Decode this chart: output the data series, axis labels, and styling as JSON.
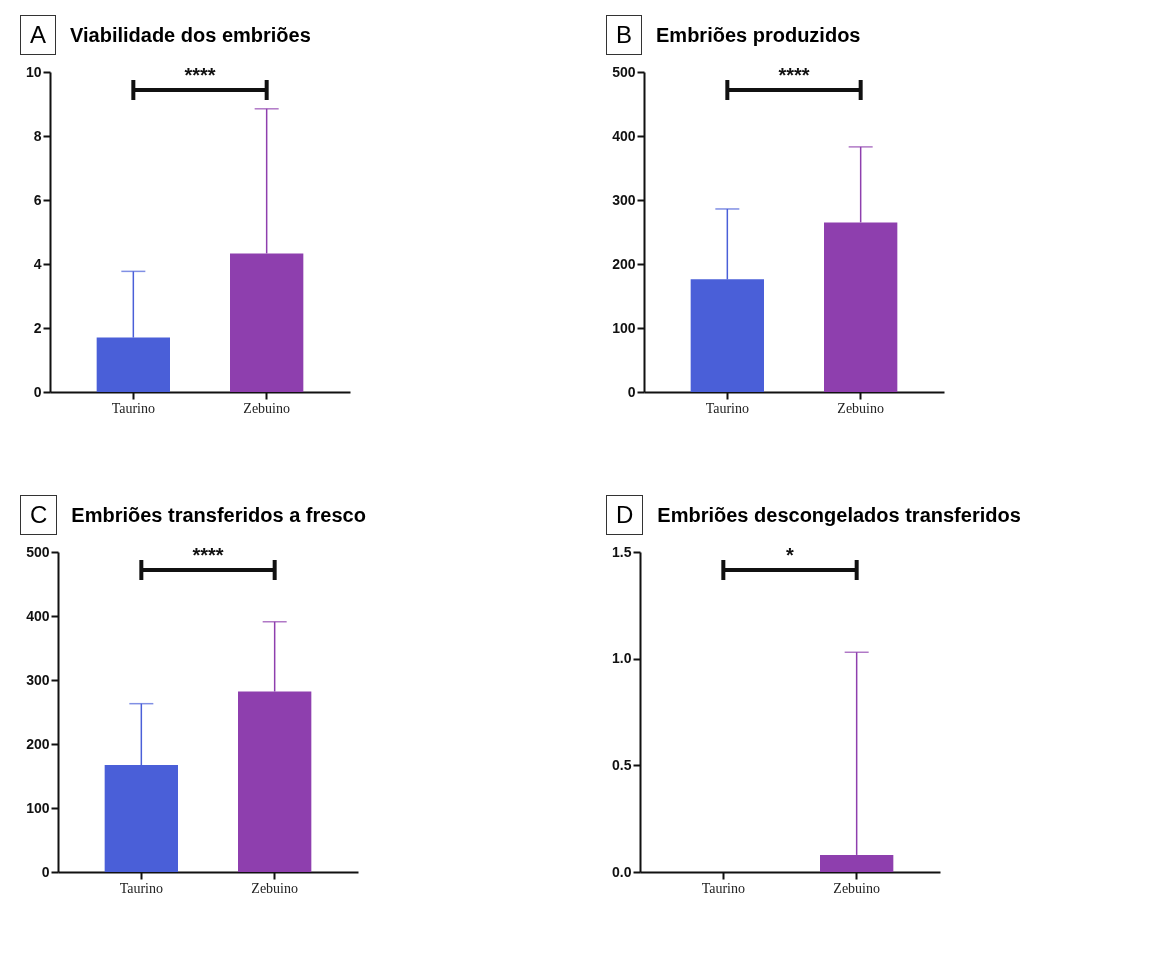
{
  "chart_data": [
    {
      "type": "bar",
      "title": "Viabilidade dos embriões",
      "categories": [
        "Taurino",
        "Zebuino"
      ],
      "values": [
        1.7,
        4.33
      ],
      "colors": [
        "#4a5fd8",
        "#8e3fae"
      ],
      "errors": [
        [
          1.7,
          3.77
        ],
        [
          4.33,
          8.85
        ]
      ],
      "ylim": [
        0,
        10
      ],
      "yticks": [
        0,
        2,
        4,
        6,
        8,
        10
      ],
      "annotations": [
        "A",
        "****"
      ]
    },
    {
      "type": "bar",
      "title": "Embriões produzidos",
      "categories": [
        "Taurino",
        "Zebuino"
      ],
      "values": [
        176,
        265
      ],
      "colors": [
        "#4a5fd8",
        "#8e3fae"
      ],
      "errors": [
        [
          176,
          286
        ],
        [
          265,
          383
        ]
      ],
      "ylim": [
        0,
        500
      ],
      "yticks": [
        0,
        100,
        200,
        300,
        400,
        500
      ],
      "annotations": [
        "B",
        "****"
      ]
    },
    {
      "type": "bar",
      "title": "Embriões transferidos a fresco",
      "categories": [
        "Taurino",
        "Zebuino"
      ],
      "values": [
        167,
        282
      ],
      "colors": [
        "#4a5fd8",
        "#8e3fae"
      ],
      "errors": [
        [
          167,
          263
        ],
        [
          282,
          391
        ]
      ],
      "ylim": [
        0,
        500
      ],
      "yticks": [
        0,
        100,
        200,
        300,
        400,
        500
      ],
      "annotations": [
        "C",
        "****"
      ]
    },
    {
      "type": "bar",
      "title": "Embriões descongelados transferidos",
      "categories": [
        "Taurino",
        "Zebuino"
      ],
      "values": [
        0,
        0.08
      ],
      "colors": [
        "#4a5fd8",
        "#8e3fae"
      ],
      "errors": [
        null,
        [
          0.08,
          1.03
        ]
      ],
      "ylim": [
        0,
        1.5
      ],
      "yticks": [
        {
          "value": 0,
          "label": "0.0"
        },
        0.5,
        {
          "value": 1,
          "label": "1.0"
        },
        1.5
      ],
      "annotations": [
        "D",
        "*"
      ]
    }
  ]
}
